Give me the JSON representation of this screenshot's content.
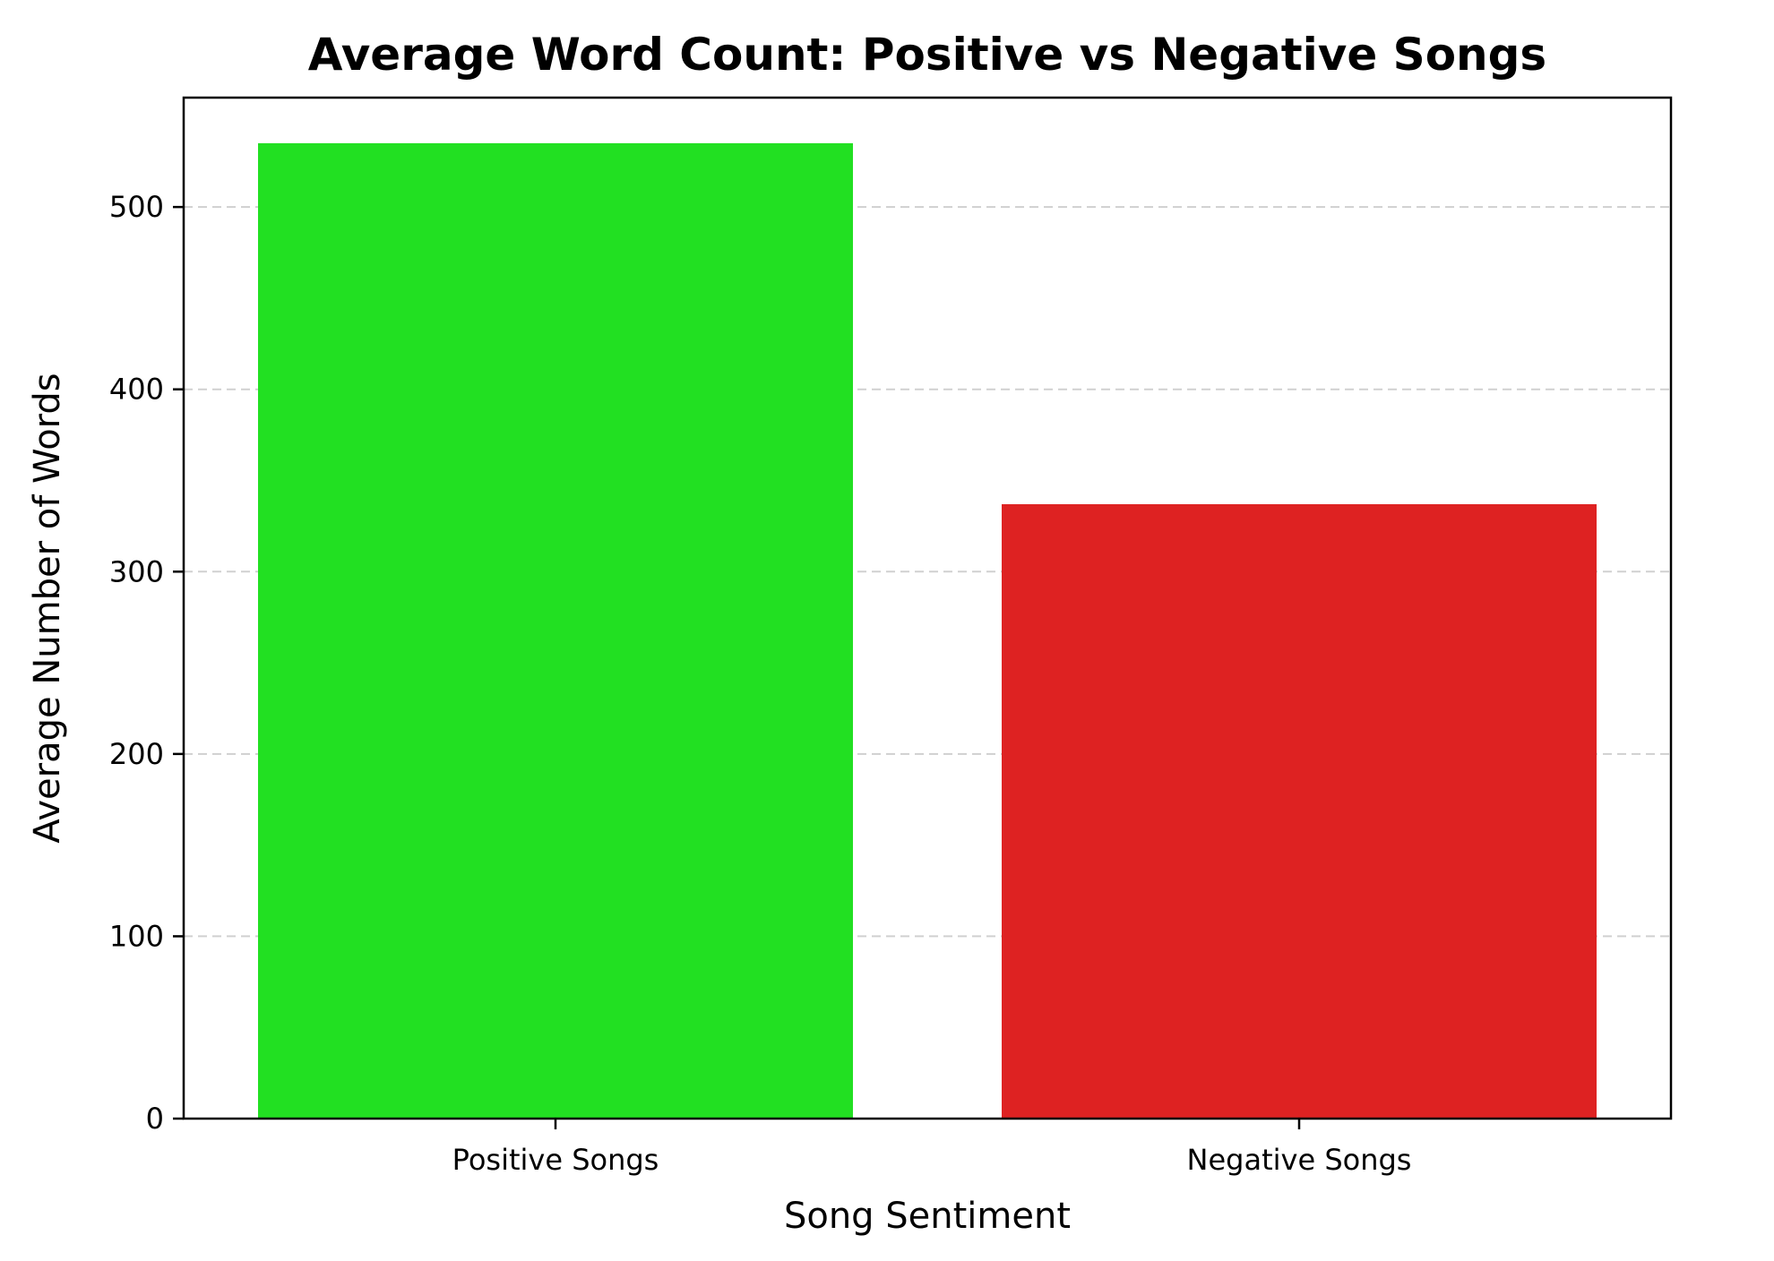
{
  "chart_data": {
    "type": "bar",
    "title": "Average Word Count: Positive vs Negative Songs",
    "xlabel": "Song Sentiment",
    "ylabel": "Average Number of Words",
    "categories": [
      "Positive Songs",
      "Negative Songs"
    ],
    "values": [
      535,
      337
    ],
    "colors": [
      "#22e022",
      "#de2222"
    ],
    "ylim": [
      0,
      560
    ],
    "yticks": [
      0,
      100,
      200,
      300,
      400,
      500
    ],
    "grid": true,
    "grid_axis": "y",
    "legend": "none"
  }
}
